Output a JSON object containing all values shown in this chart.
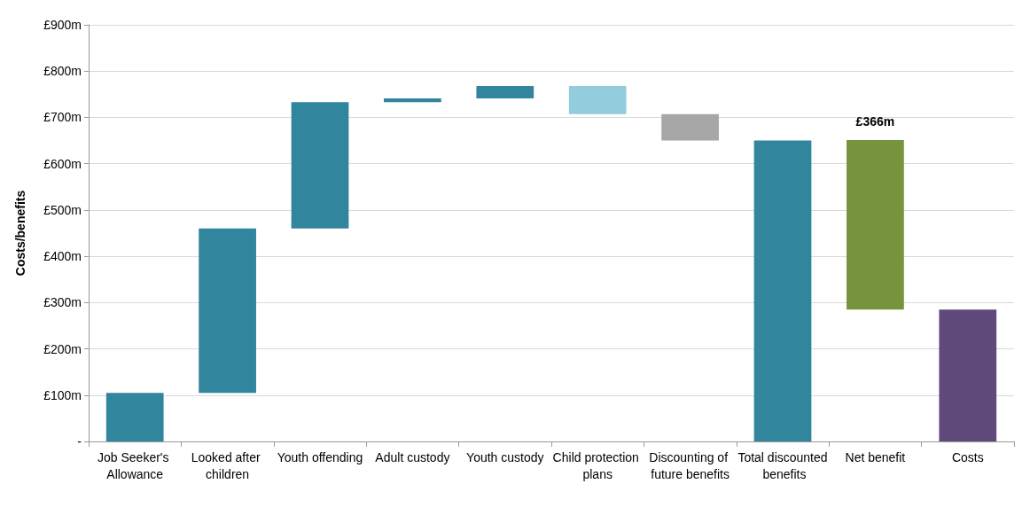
{
  "chart_data": {
    "type": "bar",
    "ylabel": "Costs/benefits",
    "categories": [
      "Job Seeker's Allowance",
      "Looked after children",
      "Youth offending",
      "Adult custody",
      "Youth custody",
      "Child protection plans",
      "Discounting of future benefits",
      "Total discounted benefits",
      "Net benefit",
      "Costs"
    ],
    "base": [
      0,
      105,
      460,
      733,
      741,
      768,
      707,
      0,
      285,
      0
    ],
    "values": [
      105,
      355,
      273,
      8,
      27,
      -61,
      -57,
      650,
      366,
      285
    ],
    "colors": [
      "#31859c",
      "#31859c",
      "#31859c",
      "#31859c",
      "#31859c",
      "#93cddd",
      "#a6a6a6",
      "#31859c",
      "#77933c",
      "#604a7b"
    ],
    "value_labels": [
      null,
      null,
      null,
      null,
      null,
      null,
      null,
      null,
      "£366m",
      null
    ],
    "ylim": [
      0,
      900
    ],
    "yticks": [
      {
        "value": 0,
        "label": "-"
      },
      {
        "value": 100,
        "label": "£100m"
      },
      {
        "value": 200,
        "label": "£200m"
      },
      {
        "value": 300,
        "label": "£300m"
      },
      {
        "value": 400,
        "label": "£400m"
      },
      {
        "value": 500,
        "label": "£500m"
      },
      {
        "value": 600,
        "label": "£600m"
      },
      {
        "value": 700,
        "label": "£700m"
      },
      {
        "value": 800,
        "label": "£800m"
      },
      {
        "value": 900,
        "label": "£900m"
      }
    ],
    "grid": "y"
  }
}
